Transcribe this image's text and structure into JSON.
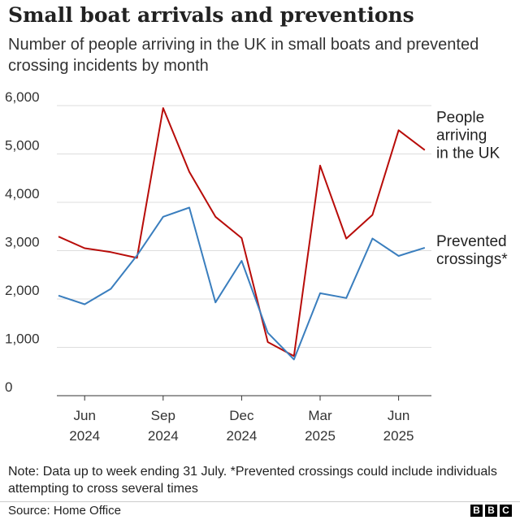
{
  "title": "Small boat arrivals and preventions",
  "subtitle": "Number of people arriving in the UK in small boats and prevented crossing incidents by month",
  "note": "Note: Data up to week ending 31 July. *Prevented crossings could include individuals attempting to cross several times",
  "source": "Source: Home Office",
  "logo": [
    "B",
    "B",
    "C"
  ],
  "chart_data": {
    "type": "line",
    "title": "Small boat arrivals and preventions",
    "xlabel": "",
    "ylabel": "",
    "ylim": [
      0,
      6000
    ],
    "grid": true,
    "y_ticks": [
      {
        "value": 0,
        "label": "0"
      },
      {
        "value": 1000,
        "label": "1,000"
      },
      {
        "value": 2000,
        "label": "2,000"
      },
      {
        "value": 3000,
        "label": "3,000"
      },
      {
        "value": 4000,
        "label": "4,000"
      },
      {
        "value": 5000,
        "label": "5,000"
      },
      {
        "value": 6000,
        "label": "6,000"
      }
    ],
    "x": [
      "May 2024",
      "Jun 2024",
      "Jul 2024",
      "Aug 2024",
      "Sep 2024",
      "Oct 2024",
      "Nov 2024",
      "Dec 2024",
      "Jan 2025",
      "Feb 2025",
      "Mar 2025",
      "Apr 2025",
      "May 2025",
      "Jun 2025",
      "Jul 2025"
    ],
    "x_ticks": [
      {
        "index": 1,
        "month": "Jun",
        "year": "2024"
      },
      {
        "index": 4,
        "month": "Sep",
        "year": "2024"
      },
      {
        "index": 7,
        "month": "Dec",
        "year": "2024"
      },
      {
        "index": 10,
        "month": "Mar",
        "year": "2025"
      },
      {
        "index": 13,
        "month": "Jun",
        "year": "2025"
      }
    ],
    "series": [
      {
        "name": "People arriving in the UK",
        "label_lines": [
          "People",
          "arriving",
          "in the UK"
        ],
        "color": "#b80c09",
        "values": [
          3290,
          3050,
          2970,
          2850,
          5950,
          4630,
          3700,
          3260,
          1110,
          820,
          4760,
          3250,
          3740,
          5490,
          5080
        ]
      },
      {
        "name": "Prevented crossings*",
        "label_lines": [
          "Prevented",
          "crossings*"
        ],
        "color": "#3a7ebe",
        "values": [
          2070,
          1890,
          2210,
          2900,
          3700,
          3890,
          1930,
          2790,
          1300,
          750,
          2120,
          2020,
          3250,
          2890,
          3060
        ]
      }
    ]
  }
}
